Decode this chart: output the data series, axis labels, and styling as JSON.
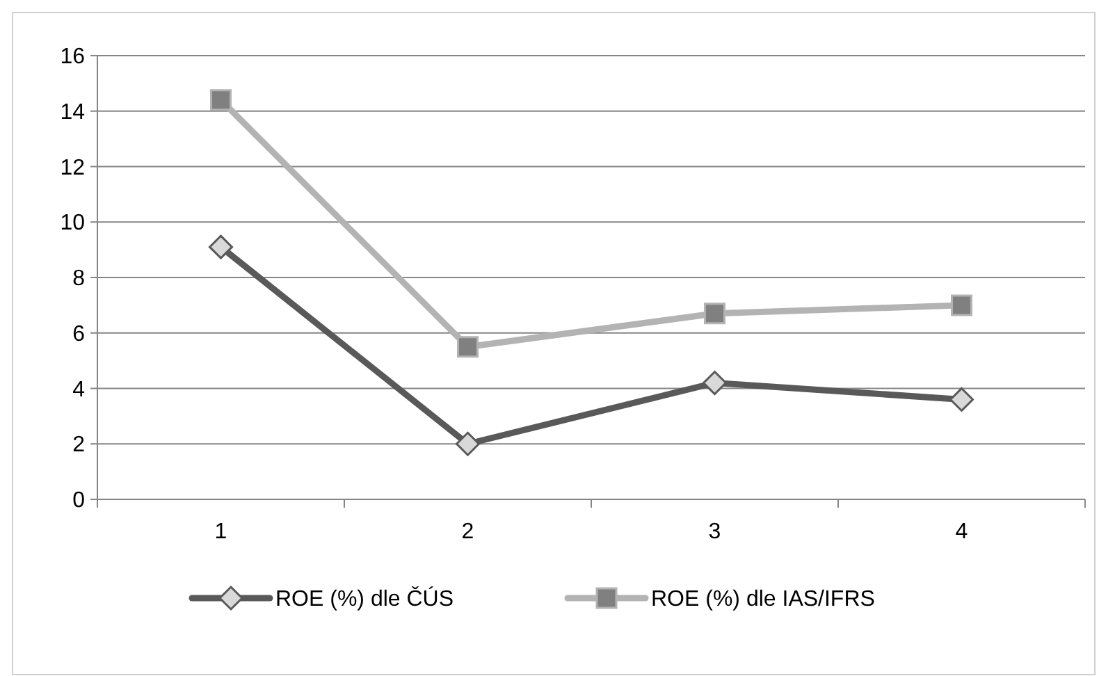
{
  "chart_data": {
    "type": "line",
    "categories": [
      "1",
      "2",
      "3",
      "4"
    ],
    "series": [
      {
        "name": "ROE (%) dle ČÚS",
        "color": "#595959",
        "marker": "diamond",
        "values": [
          9.1,
          2.0,
          4.2,
          3.6
        ]
      },
      {
        "name": "ROE (%) dle IAS/IFRS",
        "color": "#b3b3b3",
        "marker": "square",
        "values": [
          14.4,
          5.5,
          6.7,
          7.0
        ]
      }
    ],
    "ylim": [
      0,
      16
    ],
    "yticks": [
      0,
      2,
      4,
      6,
      8,
      10,
      12,
      14,
      16
    ],
    "grid": "y",
    "legend": "bottom"
  }
}
